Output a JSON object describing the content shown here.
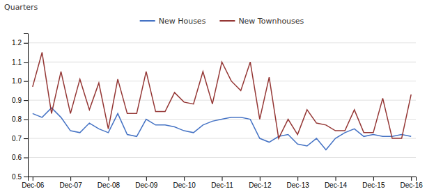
{
  "chart_data": {
    "type": "line",
    "ylabel": "Quarters",
    "categories": [
      "Dec-06",
      null,
      null,
      null,
      "Dec-07",
      null,
      null,
      null,
      "Dec-08",
      null,
      null,
      null,
      "Dec-09",
      null,
      null,
      null,
      "Dec-10",
      null,
      null,
      null,
      "Dec-11",
      null,
      null,
      null,
      "Dec-12",
      null,
      null,
      null,
      "Dec-13",
      null,
      null,
      null,
      "Dec-14",
      null,
      null,
      null,
      "Dec-15",
      null,
      null,
      null,
      "Dec-16"
    ],
    "series": [
      {
        "name": "New Houses",
        "color": "#4472C4",
        "values": [
          0.83,
          0.81,
          0.86,
          0.81,
          0.74,
          0.73,
          0.78,
          0.75,
          0.73,
          0.83,
          0.72,
          0.71,
          0.8,
          0.77,
          0.77,
          0.76,
          0.74,
          0.73,
          0.77,
          0.79,
          0.8,
          0.81,
          0.81,
          0.8,
          0.7,
          0.68,
          0.71,
          0.72,
          0.67,
          0.66,
          0.7,
          0.64,
          0.7,
          0.73,
          0.75,
          0.71,
          0.72,
          0.71,
          0.71,
          0.72,
          0.71
        ]
      },
      {
        "name": "New Townhouses",
        "color": "#943634",
        "values": [
          0.97,
          1.15,
          0.83,
          1.05,
          0.83,
          1.01,
          0.85,
          0.99,
          0.75,
          1.01,
          0.83,
          0.83,
          1.05,
          0.84,
          0.84,
          0.94,
          0.89,
          0.88,
          1.05,
          0.88,
          1.1,
          1.0,
          0.95,
          1.1,
          0.8,
          1.02,
          0.7,
          0.8,
          0.72,
          0.85,
          0.78,
          0.77,
          0.74,
          0.74,
          0.85,
          0.73,
          0.73,
          0.91,
          0.7,
          0.7,
          0.93
        ]
      }
    ],
    "ylim": [
      0.5,
      1.25
    ],
    "yticks": [
      0.5,
      0.6,
      0.7,
      0.8,
      0.9,
      {
        "value": 1.0,
        "label": "1.0"
      },
      1.1,
      1.2
    ],
    "grid": true,
    "legend": "top"
  }
}
